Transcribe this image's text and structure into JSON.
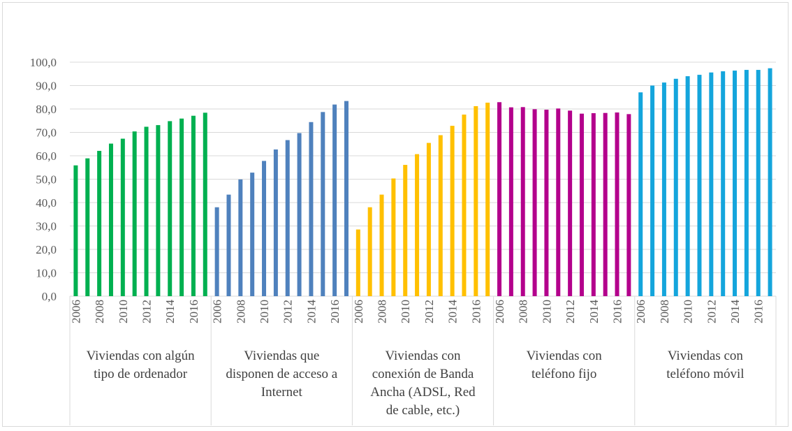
{
  "chart_data": {
    "type": "bar",
    "y_ticks": [
      "0,0",
      "10,0",
      "20,0",
      "30,0",
      "40,0",
      "50,0",
      "60,0",
      "70,0",
      "80,0",
      "90,0",
      "100,0"
    ],
    "ylim": [
      0,
      100
    ],
    "grid": true,
    "years": [
      2006,
      2007,
      2008,
      2009,
      2010,
      2011,
      2012,
      2013,
      2014,
      2015,
      2016,
      2017
    ],
    "year_tick_labels": [
      "2006",
      "",
      "2008",
      "",
      "2010",
      "",
      "2012",
      "",
      "2014",
      "",
      "2016",
      ""
    ],
    "groups": [
      {
        "label_lines": [
          "Viviendas con algún",
          "tipo de ordenador"
        ],
        "color": "#00B050",
        "values": [
          55.9,
          58.9,
          62.1,
          65.2,
          67.3,
          70.4,
          72.4,
          73.1,
          74.8,
          75.9,
          77.1,
          78.4
        ]
      },
      {
        "label_lines": [
          "Viviendas que",
          "disponen de acceso a",
          "Internet"
        ],
        "color": "#4F81BD",
        "values": [
          38.0,
          43.4,
          49.9,
          52.8,
          57.8,
          62.7,
          66.7,
          69.7,
          74.4,
          78.7,
          81.9,
          83.4
        ]
      },
      {
        "label_lines": [
          "Viviendas con",
          "conexión de Banda",
          "Ancha  (ADSL, Red",
          "de cable, etc.)"
        ],
        "color": "#FFC000",
        "values": [
          28.5,
          38.0,
          43.4,
          50.3,
          56.1,
          60.7,
          65.5,
          68.8,
          72.8,
          77.6,
          81.2,
          82.7
        ]
      },
      {
        "label_lines": [
          "Viviendas con",
          "teléfono fijo"
        ],
        "color": "#B3008C",
        "values": [
          82.9,
          80.7,
          80.8,
          79.9,
          79.7,
          80.2,
          79.3,
          78.0,
          78.2,
          78.3,
          78.5,
          77.8
        ]
      },
      {
        "label_lines": [
          "Viviendas con",
          "teléfono móvil"
        ],
        "color": "#14A5DC",
        "values": [
          87.1,
          90.0,
          91.3,
          92.9,
          94.0,
          94.6,
          95.6,
          96.1,
          96.4,
          96.7,
          96.7,
          97.4
        ]
      }
    ]
  }
}
